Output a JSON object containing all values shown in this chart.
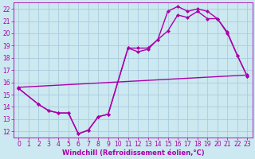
{
  "xlabel": "Windchill (Refroidissement éolien,°C)",
  "bg_color": "#cce8f0",
  "line_color": "#aa00aa",
  "grid_color": "#aaccdd",
  "xlim": [
    -0.5,
    23.5
  ],
  "ylim": [
    11.5,
    22.5
  ],
  "xticks": [
    0,
    1,
    2,
    3,
    4,
    5,
    6,
    7,
    8,
    9,
    10,
    11,
    12,
    13,
    14,
    15,
    16,
    17,
    18,
    19,
    20,
    21,
    22,
    23
  ],
  "yticks": [
    12,
    13,
    14,
    15,
    16,
    17,
    18,
    19,
    20,
    21,
    22
  ],
  "line1_x": [
    0,
    23
  ],
  "line1_y": [
    15.6,
    16.6
  ],
  "line2_x": [
    0,
    2,
    3,
    4,
    5,
    6,
    7,
    8,
    9,
    11,
    12,
    13,
    14,
    15,
    16,
    17,
    18,
    19,
    20,
    21,
    22,
    23
  ],
  "line2_y": [
    15.5,
    14.2,
    13.7,
    13.5,
    13.5,
    11.8,
    12.1,
    13.2,
    13.4,
    18.8,
    18.8,
    18.8,
    19.5,
    21.8,
    22.2,
    21.8,
    22.0,
    21.8,
    21.2,
    20.1,
    18.2,
    16.5
  ],
  "line3_x": [
    0,
    2,
    3,
    4,
    5,
    6,
    7,
    8,
    9,
    11,
    12,
    13,
    14,
    15,
    16,
    17,
    18,
    19,
    20,
    21,
    22,
    23
  ],
  "line3_y": [
    15.5,
    14.2,
    13.7,
    13.5,
    13.5,
    11.8,
    12.1,
    13.2,
    13.4,
    18.8,
    18.5,
    18.7,
    19.5,
    20.2,
    21.5,
    21.3,
    21.8,
    21.2,
    21.2,
    20.0,
    18.2,
    16.5
  ],
  "marker_size": 2.5,
  "linewidth": 1.0,
  "font_size": 6,
  "tick_font_size": 5.5
}
